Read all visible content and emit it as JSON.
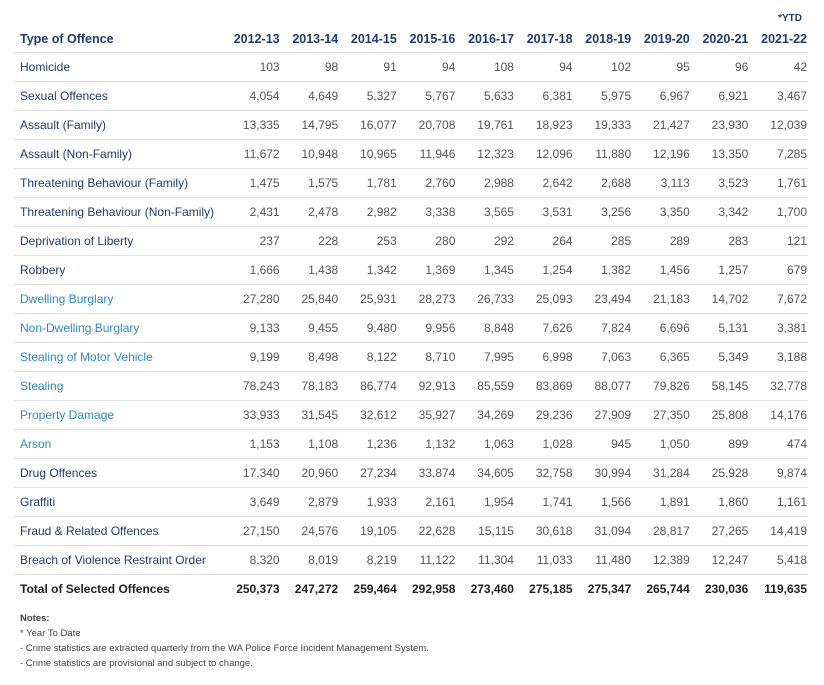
{
  "table": {
    "ytd_marker": "*YTD",
    "columns": [
      "Type of Offence",
      "2012-13",
      "2013-14",
      "2014-15",
      "2015-16",
      "2016-17",
      "2017-18",
      "2018-19",
      "2019-20",
      "2020-21",
      "2021-22"
    ],
    "rows": [
      {
        "label": "Homicide",
        "color": "#1d3d73",
        "values": [
          "103",
          "98",
          "91",
          "94",
          "108",
          "94",
          "102",
          "95",
          "96",
          "42"
        ]
      },
      {
        "label": "Sexual Offences",
        "color": "#1d3d73",
        "values": [
          "4,054",
          "4,649",
          "5,327",
          "5,767",
          "5,633",
          "6,381",
          "5,975",
          "6,967",
          "6,921",
          "3,467"
        ]
      },
      {
        "label": "Assault (Family)",
        "color": "#1d3d73",
        "values": [
          "13,335",
          "14,795",
          "16,077",
          "20,708",
          "19,761",
          "18,923",
          "19,333",
          "21,427",
          "23,930",
          "12,039"
        ]
      },
      {
        "label": "Assault (Non-Family)",
        "color": "#1d3d73",
        "values": [
          "11,672",
          "10,948",
          "10,965",
          "11,946",
          "12,323",
          "12,096",
          "11,880",
          "12,196",
          "13,350",
          "7,285"
        ]
      },
      {
        "label": "Threatening Behaviour (Family)",
        "color": "#1d3d73",
        "values": [
          "1,475",
          "1,575",
          "1,781",
          "2,760",
          "2,988",
          "2,642",
          "2,688",
          "3,113",
          "3,523",
          "1,761"
        ]
      },
      {
        "label": "Threatening Behaviour (Non-Family)",
        "color": "#1d3d73",
        "values": [
          "2,431",
          "2,478",
          "2,982",
          "3,338",
          "3,565",
          "3,531",
          "3,256",
          "3,350",
          "3,342",
          "1,700"
        ]
      },
      {
        "label": "Deprivation of Liberty",
        "color": "#1d3d73",
        "values": [
          "237",
          "228",
          "253",
          "280",
          "292",
          "264",
          "285",
          "289",
          "283",
          "121"
        ]
      },
      {
        "label": "Robbery",
        "color": "#1d3d73",
        "values": [
          "1,666",
          "1,438",
          "1,342",
          "1,369",
          "1,345",
          "1,254",
          "1,382",
          "1,456",
          "1,257",
          "679"
        ]
      },
      {
        "label": "Dwelling Burglary",
        "color": "#2e8bc9",
        "values": [
          "27,280",
          "25,840",
          "25,931",
          "28,273",
          "26,733",
          "25,093",
          "23,494",
          "21,183",
          "14,702",
          "7,672"
        ]
      },
      {
        "label": "Non-Dwelling Burglary",
        "color": "#2e8bc9",
        "values": [
          "9,133",
          "9,455",
          "9,480",
          "9,956",
          "8,848",
          "7,626",
          "7,824",
          "6,696",
          "5,131",
          "3,381"
        ]
      },
      {
        "label": "Stealing of Motor Vehicle",
        "color": "#2e8bc9",
        "values": [
          "9,199",
          "8,498",
          "8,122",
          "8,710",
          "7,995",
          "6,998",
          "7,063",
          "6,365",
          "5,349",
          "3,188"
        ]
      },
      {
        "label": "Stealing",
        "color": "#2e8bc9",
        "values": [
          "78,243",
          "78,183",
          "86,774",
          "92,913",
          "85,559",
          "83,869",
          "88,077",
          "79,826",
          "58,145",
          "32,778"
        ]
      },
      {
        "label": "Property Damage",
        "color": "#2e8bc9",
        "values": [
          "33,933",
          "31,545",
          "32,612",
          "35,927",
          "34,269",
          "29,236",
          "27,909",
          "27,350",
          "25,808",
          "14,176"
        ]
      },
      {
        "label": "Arson",
        "color": "#2e8bc9",
        "values": [
          "1,153",
          "1,108",
          "1,236",
          "1,132",
          "1,063",
          "1,028",
          "945",
          "1,050",
          "899",
          "474"
        ]
      },
      {
        "label": "Drug Offences",
        "color": "#1d3d73",
        "values": [
          "17,340",
          "20,960",
          "27,234",
          "33,874",
          "34,605",
          "32,758",
          "30,994",
          "31,284",
          "25,928",
          "9,874"
        ]
      },
      {
        "label": "Graffiti",
        "color": "#1d3d73",
        "values": [
          "3,649",
          "2,879",
          "1,933",
          "2,161",
          "1,954",
          "1,741",
          "1,566",
          "1,891",
          "1,860",
          "1,161"
        ]
      },
      {
        "label": "Fraud & Related Offences",
        "color": "#1d3d73",
        "values": [
          "27,150",
          "24,576",
          "19,105",
          "22,628",
          "15,115",
          "30,618",
          "31,094",
          "28,817",
          "27,265",
          "14,419"
        ]
      },
      {
        "label": "Breach of Violence Restraint Order",
        "color": "#1d3d73",
        "values": [
          "8,320",
          "8,019",
          "8,219",
          "11,122",
          "11,304",
          "11,033",
          "11,480",
          "12,389",
          "12,247",
          "5,418"
        ]
      }
    ],
    "total": {
      "label": "Total of Selected Offences",
      "values": [
        "250,373",
        "247,272",
        "259,464",
        "292,958",
        "273,460",
        "275,185",
        "275,347",
        "265,744",
        "230,036",
        "119,635"
      ]
    }
  },
  "notes": {
    "title": "Notes:",
    "lines": [
      "* Year To Date",
      "- Crime statistics are extracted quarterly from the WA Police Force Incident Management System.",
      "- Crime statistics are provisional and subject to change."
    ]
  }
}
